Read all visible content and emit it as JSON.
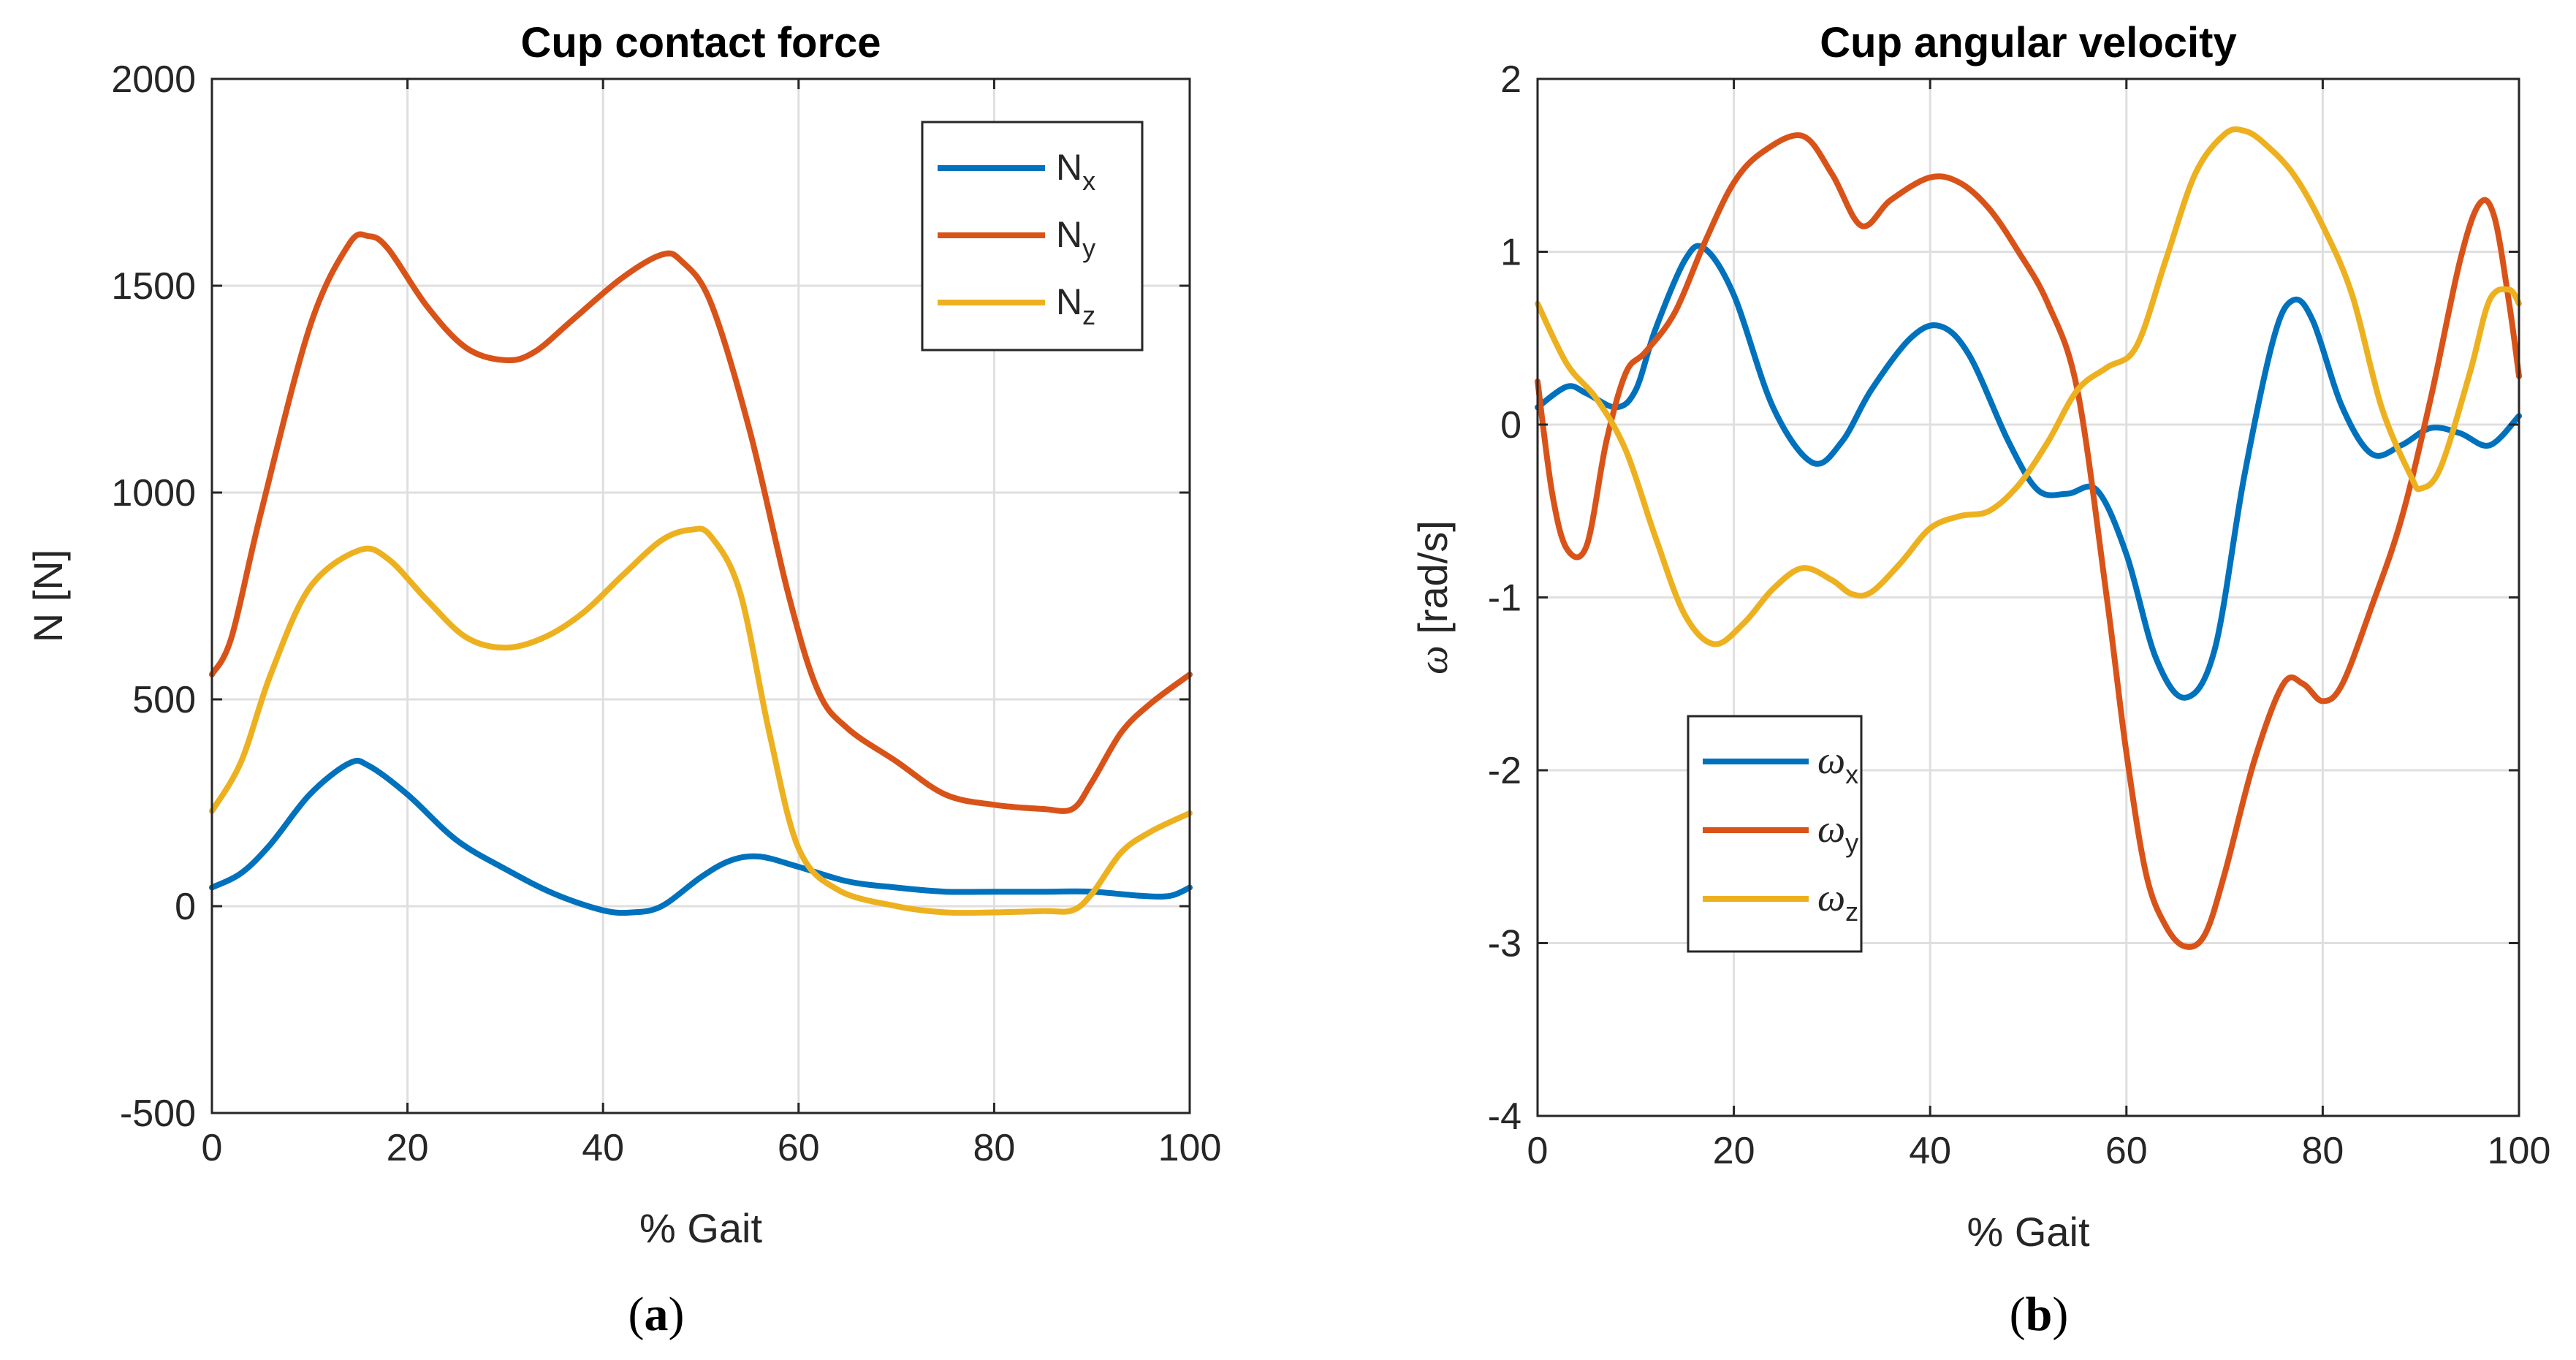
{
  "chart_data": [
    {
      "type": "line",
      "title": "Cup contact force",
      "xlabel": "% Gait",
      "ylabel": "N [N]",
      "xlim": [
        0,
        100
      ],
      "ylim": [
        -500,
        2000
      ],
      "xticks": [
        0,
        20,
        40,
        60,
        80,
        100
      ],
      "yticks": [
        -500,
        0,
        500,
        1000,
        1500,
        2000
      ],
      "grid": true,
      "legend_position": "top-right",
      "caption": "(a)",
      "series": [
        {
          "name": "N",
          "sub": "x",
          "color": "#0072BD",
          "x": [
            0,
            3,
            6,
            10,
            14,
            16,
            20,
            25,
            30,
            35,
            40,
            43,
            46,
            50,
            53,
            56,
            60,
            65,
            70,
            75,
            80,
            85,
            90,
            95,
            98,
            100
          ],
          "y": [
            45,
            80,
            150,
            270,
            345,
            340,
            270,
            160,
            90,
            30,
            -10,
            -15,
            0,
            70,
            110,
            120,
            95,
            60,
            45,
            35,
            35,
            35,
            35,
            25,
            25,
            45
          ]
        },
        {
          "name": "N",
          "sub": "y",
          "color": "#D95319",
          "x": [
            0,
            2,
            5,
            10,
            14,
            16,
            18,
            22,
            26,
            30,
            33,
            37,
            42,
            46,
            48,
            51,
            55,
            59,
            62,
            65,
            70,
            75,
            80,
            85,
            88,
            90,
            93,
            96,
            100
          ],
          "y": [
            560,
            650,
            950,
            1400,
            1600,
            1620,
            1590,
            1450,
            1350,
            1320,
            1340,
            1420,
            1520,
            1575,
            1560,
            1460,
            1150,
            750,
            520,
            430,
            350,
            270,
            245,
            235,
            235,
            300,
            420,
            490,
            560
          ]
        },
        {
          "name": "N",
          "sub": "z",
          "color": "#EDB120",
          "x": [
            0,
            3,
            6,
            10,
            15,
            18,
            22,
            26,
            30,
            34,
            38,
            42,
            46,
            49,
            51,
            54,
            57,
            60,
            64,
            70,
            75,
            80,
            85,
            88,
            90,
            93,
            96,
            100
          ],
          "y": [
            230,
            350,
            560,
            770,
            860,
            840,
            740,
            650,
            625,
            650,
            710,
            800,
            885,
            910,
            895,
            760,
            420,
            140,
            40,
            0,
            -15,
            -15,
            -12,
            -10,
            30,
            130,
            180,
            225
          ]
        }
      ]
    },
    {
      "type": "line",
      "title": "Cup angular velocity",
      "xlabel": "% Gait",
      "ylabel_symbol": "ω",
      "ylabel_unit": "[rad/s]",
      "xlim": [
        0,
        100
      ],
      "ylim": [
        -4,
        2
      ],
      "xticks": [
        0,
        20,
        40,
        60,
        80,
        100
      ],
      "yticks": [
        -4,
        -3,
        -2,
        -1,
        0,
        1,
        2
      ],
      "grid": true,
      "legend_position": "lower-left",
      "caption": "(b)",
      "series": [
        {
          "name": "ω",
          "sub": "x",
          "color": "#0072BD",
          "x": [
            0,
            3,
            5,
            8,
            10,
            12,
            15,
            17,
            20,
            24,
            28,
            31,
            34,
            38,
            41,
            44,
            48,
            51,
            54,
            57,
            60,
            63,
            66,
            69,
            72,
            75,
            77,
            79,
            82,
            85,
            88,
            91,
            94,
            97,
            100
          ],
          "y": [
            0.1,
            0.22,
            0.18,
            0.1,
            0.2,
            0.55,
            0.95,
            1.02,
            0.75,
            0.1,
            -0.22,
            -0.1,
            0.2,
            0.5,
            0.57,
            0.4,
            -0.1,
            -0.38,
            -0.4,
            -0.38,
            -0.75,
            -1.35,
            -1.58,
            -1.3,
            -0.3,
            0.5,
            0.72,
            0.6,
            0.1,
            -0.17,
            -0.12,
            -0.02,
            -0.05,
            -0.12,
            0.05
          ]
        },
        {
          "name": "ω",
          "sub": "y",
          "color": "#D95319",
          "x": [
            0,
            1.5,
            3,
            5,
            7,
            9,
            11,
            14,
            17,
            20,
            23,
            27,
            30,
            33,
            36,
            40,
            43,
            46,
            49,
            52,
            55,
            58,
            60,
            62,
            64,
            66,
            68,
            70,
            73,
            76,
            78,
            80,
            82,
            85,
            88,
            91,
            94,
            96,
            97.5,
            99,
            100
          ],
          "y": [
            0.25,
            -0.4,
            -0.72,
            -0.7,
            -0.1,
            0.3,
            0.42,
            0.65,
            1.05,
            1.4,
            1.58,
            1.67,
            1.45,
            1.15,
            1.3,
            1.43,
            1.4,
            1.25,
            1.0,
            0.7,
            0.2,
            -1.0,
            -1.9,
            -2.6,
            -2.9,
            -3.02,
            -2.95,
            -2.6,
            -1.95,
            -1.5,
            -1.5,
            -1.6,
            -1.5,
            -1.05,
            -0.55,
            0.15,
            0.95,
            1.28,
            1.2,
            0.7,
            0.28
          ]
        },
        {
          "name": "ω",
          "sub": "z",
          "color": "#EDB120",
          "x": [
            0,
            3,
            6,
            9,
            12,
            15,
            18,
            21,
            24,
            27,
            30,
            32,
            34,
            37,
            40,
            43,
            46,
            49,
            52,
            55,
            58,
            61,
            64,
            67,
            70,
            72,
            74,
            77,
            80,
            83,
            86,
            89,
            90,
            92,
            95,
            97,
            99,
            100
          ],
          "y": [
            0.7,
            0.35,
            0.15,
            -0.15,
            -0.65,
            -1.1,
            -1.27,
            -1.15,
            -0.95,
            -0.83,
            -0.9,
            -0.98,
            -0.97,
            -0.8,
            -0.6,
            -0.53,
            -0.5,
            -0.35,
            -0.1,
            0.2,
            0.33,
            0.45,
            0.95,
            1.45,
            1.68,
            1.7,
            1.63,
            1.45,
            1.15,
            0.75,
            0.1,
            -0.3,
            -0.37,
            -0.25,
            0.3,
            0.72,
            0.78,
            0.7
          ]
        }
      ]
    }
  ]
}
